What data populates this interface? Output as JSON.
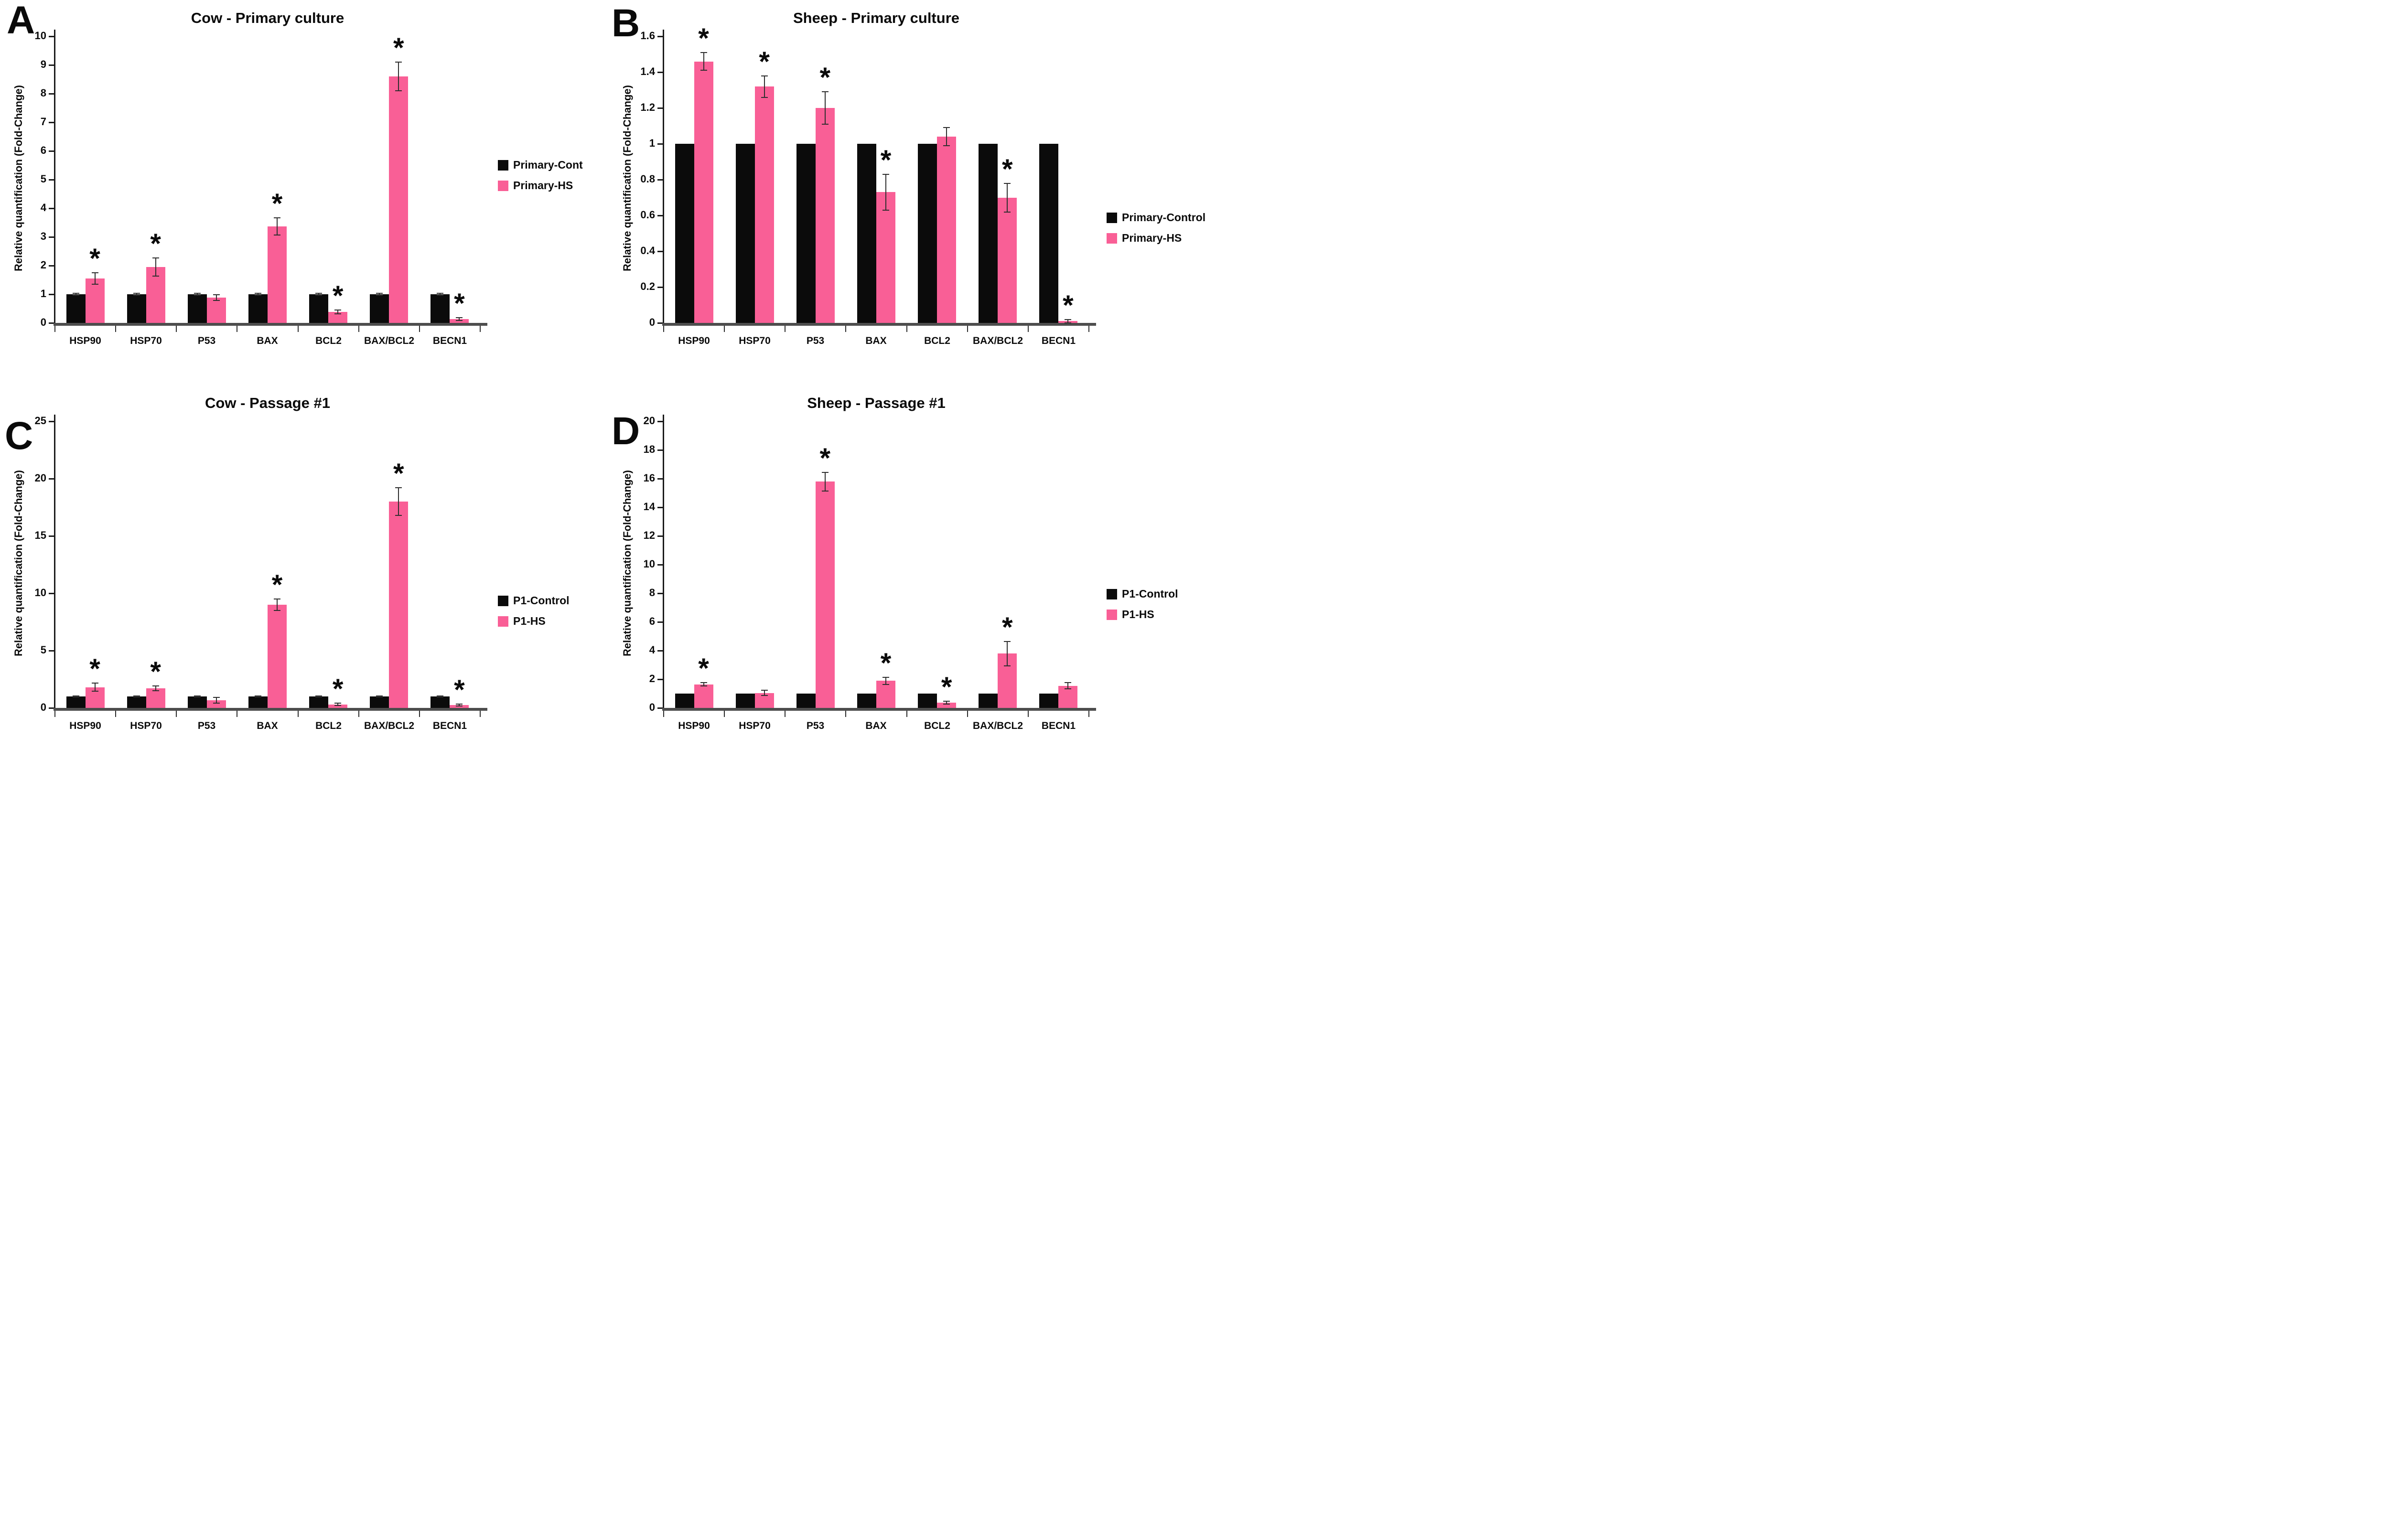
{
  "figure_title": "Relative gene expression fold-change bar charts",
  "colors": {
    "control_bar": "#0b0b0b",
    "hs_bar": "#F95F96",
    "axis": "#1a1a1a",
    "baseline": "#4d4d4d",
    "error_bar": "#2e2e2e"
  },
  "chart_data": [
    {
      "type": "bar",
      "panel_label": "A",
      "title": "Cow - Primary culture",
      "ylabel": "Relative quantification (Fold-Change)",
      "xlabel": "",
      "ylim": [
        0,
        10
      ],
      "ytick_step": 1,
      "grid": false,
      "legend_position": "right",
      "categories": [
        "HSP90",
        "HSP70",
        "P53",
        "BAX",
        "BCL2",
        "BAX/BCL2",
        "BECN1"
      ],
      "series": [
        {
          "name": "Primary-Cont",
          "color_key": "control_bar",
          "values": [
            1,
            1,
            1,
            1,
            1,
            1,
            1
          ],
          "errors": [
            0.03,
            0.03,
            0.03,
            0.03,
            0.03,
            0.03,
            0.03
          ],
          "significant": [
            false,
            false,
            false,
            false,
            false,
            false,
            false
          ]
        },
        {
          "name": "Primary-HS",
          "color_key": "hs_bar",
          "values": [
            1.55,
            1.95,
            0.88,
            3.37,
            0.38,
            8.6,
            0.13
          ],
          "errors": [
            0.2,
            0.32,
            0.1,
            0.3,
            0.07,
            0.5,
            0.05
          ],
          "significant": [
            true,
            true,
            false,
            true,
            true,
            true,
            true
          ]
        }
      ]
    },
    {
      "type": "bar",
      "panel_label": "B",
      "title": "Sheep - Primary culture",
      "ylabel": "Relative quantification (Fold-Change)",
      "xlabel": "",
      "ylim": [
        0,
        1.6
      ],
      "ytick_step": 0.2,
      "grid": false,
      "legend_position": "right",
      "categories": [
        "HSP90",
        "HSP70",
        "P53",
        "BAX",
        "BCL2",
        "BAX/BCL2",
        "BECN1"
      ],
      "series": [
        {
          "name": "Primary-Control",
          "color_key": "control_bar",
          "values": [
            1,
            1,
            1,
            1,
            1,
            1,
            1
          ],
          "errors": [
            0,
            0,
            0,
            0,
            0,
            0,
            0
          ],
          "significant": [
            false,
            false,
            false,
            false,
            false,
            false,
            false
          ]
        },
        {
          "name": "Primary-HS",
          "color_key": "hs_bar",
          "values": [
            1.46,
            1.32,
            1.2,
            0.73,
            1.04,
            0.7,
            0.01
          ],
          "errors": [
            0.05,
            0.06,
            0.09,
            0.1,
            0.05,
            0.08,
            0.01
          ],
          "significant": [
            true,
            true,
            true,
            true,
            false,
            true,
            true
          ]
        }
      ]
    },
    {
      "type": "bar",
      "panel_label": "C",
      "title": "Cow - Passage #1",
      "ylabel": "Relative quantification (Fold-Change)",
      "xlabel": "",
      "ylim": [
        0,
        25
      ],
      "ytick_step": 5,
      "grid": false,
      "legend_position": "right",
      "categories": [
        "HSP90",
        "HSP70",
        "P53",
        "BAX",
        "BCL2",
        "BAX/BCL2",
        "BECN1"
      ],
      "series": [
        {
          "name": "P1-Control",
          "color_key": "control_bar",
          "values": [
            1,
            1,
            1,
            1,
            1,
            1,
            1
          ],
          "errors": [
            0.05,
            0.05,
            0.05,
            0.05,
            0.05,
            0.05,
            0.05
          ],
          "significant": [
            false,
            false,
            false,
            false,
            false,
            false,
            false
          ]
        },
        {
          "name": "P1-HS",
          "color_key": "hs_bar",
          "values": [
            1.8,
            1.7,
            0.65,
            9.0,
            0.3,
            18.0,
            0.25
          ],
          "errors": [
            0.35,
            0.2,
            0.25,
            0.5,
            0.1,
            1.2,
            0.1
          ],
          "significant": [
            true,
            true,
            false,
            true,
            true,
            true,
            true
          ]
        }
      ]
    },
    {
      "type": "bar",
      "panel_label": "D",
      "title": "Sheep - Passage #1",
      "ylabel": "Relative quantification (Fold-Change)",
      "xlabel": "",
      "ylim": [
        0,
        20
      ],
      "ytick_step": 2,
      "grid": false,
      "legend_position": "right",
      "categories": [
        "HSP90",
        "HSP70",
        "P53",
        "BAX",
        "BCL2",
        "BAX/BCL2",
        "BECN1"
      ],
      "series": [
        {
          "name": "P1-Control",
          "color_key": "control_bar",
          "values": [
            1,
            1,
            1,
            1,
            1,
            1,
            1
          ],
          "errors": [
            0,
            0,
            0,
            0,
            0,
            0,
            0
          ],
          "significant": [
            false,
            false,
            false,
            false,
            false,
            false,
            false
          ]
        },
        {
          "name": "P1-HS",
          "color_key": "hs_bar",
          "values": [
            1.65,
            1.05,
            15.8,
            1.9,
            0.38,
            3.8,
            1.55
          ],
          "errors": [
            0.12,
            0.18,
            0.65,
            0.25,
            0.1,
            0.85,
            0.22
          ],
          "significant": [
            true,
            false,
            true,
            true,
            true,
            true,
            false
          ]
        }
      ]
    }
  ]
}
